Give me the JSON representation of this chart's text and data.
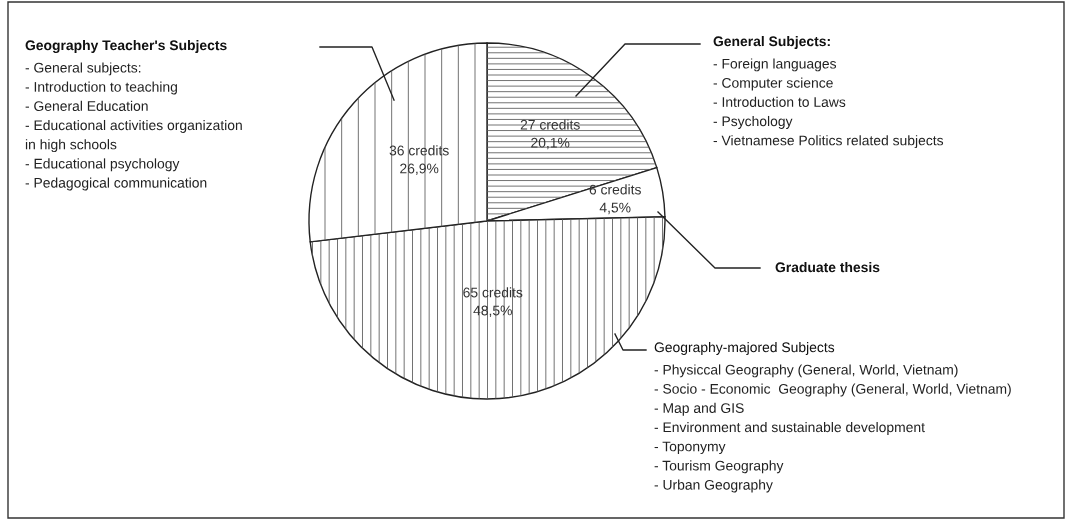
{
  "chart_data": {
    "type": "pie",
    "categories": [
      "General Subjects:\n- Foreign languages\n- Computer science\n- Introduction to Laws\n- Psychology\n- Vietnamese Politics related subjects",
      "Graduate thesis",
      "Geography-majored Subjects\n- Physiccal Geography (General, World, Vietnam)\n- Socio - Economic  Geography (General, World, Vietnam)\n- Map and GIS\n- Environment and sustainable development\n- Toponymy\n- Tourism Geography\n- Urban Geography",
      "Geography Teacher's Subjects\n- General subjects:\n- Introduction to teaching\n- General Education\n- Educational activities organization\nin high schools\n- Educational psychology\n- Pedagogical communication"
    ],
    "values": [
      27,
      6,
      65,
      36
    ],
    "value_labels": [
      "27 credits\n20,1%",
      "6 credits\n4,5%",
      "65 credits\n48,5%",
      "36 credits\n26,9%"
    ],
    "colors": [
      "#ffffff",
      "#ffffff",
      "#ffffff",
      "#ffffff"
    ],
    "legend": false
  }
}
